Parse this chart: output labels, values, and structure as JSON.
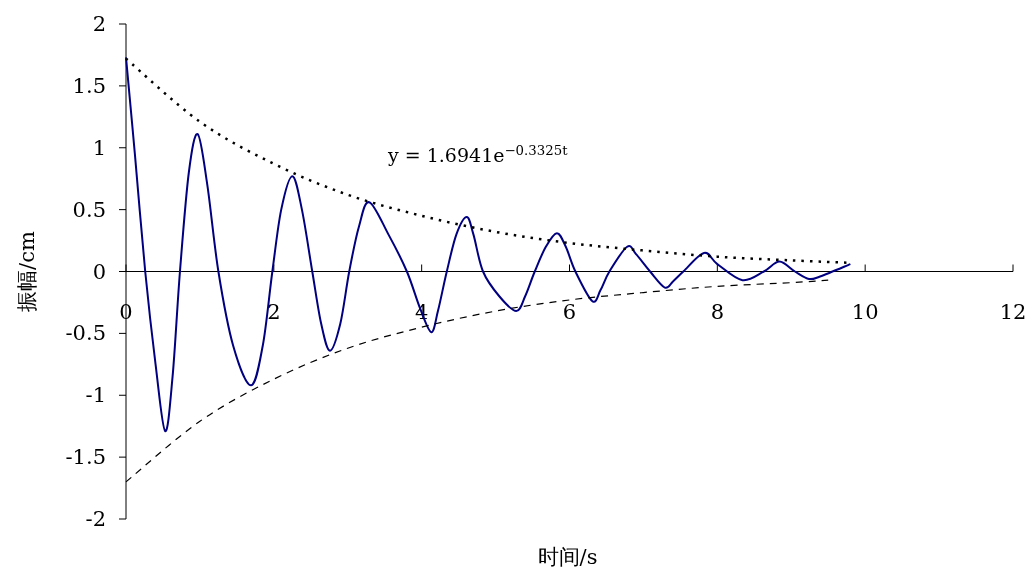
{
  "chart_data": {
    "type": "line",
    "xlabel": "时间/s",
    "ylabel": "振幅/cm",
    "annotations": [
      "y = 1.6941e$^{−0.3325t}$"
    ],
    "xlim": [
      0,
      12
    ],
    "xticks": [
      0,
      2,
      4,
      6,
      8,
      10,
      12
    ],
    "ylim": [
      -2,
      2
    ],
    "yticks": [
      -2,
      -1.5,
      -1,
      -0.5,
      0,
      0.5,
      1,
      1.5,
      2
    ],
    "grid": false,
    "marker": "none",
    "series": [
      {
        "color": "#000080",
        "line_style": "solid",
        "x": [
          0,
          0.12,
          0.26,
          0.4,
          0.53,
          0.63,
          0.73,
          0.85,
          0.97,
          1.1,
          1.25,
          1.45,
          1.69,
          1.85,
          1.98,
          2.1,
          2.25,
          2.38,
          2.52,
          2.64,
          2.76,
          2.9,
          3.02,
          3.15,
          3.29,
          3.55,
          3.8,
          3.98,
          4.13,
          4.22,
          4.34,
          4.47,
          4.61,
          4.7,
          4.83,
          5.05,
          5.28,
          5.4,
          5.53,
          5.68,
          5.83,
          5.95,
          6.08,
          6.31,
          6.42,
          6.54,
          6.78,
          6.9,
          7.09,
          7.29,
          7.4,
          7.54,
          7.82,
          8.0,
          8.34,
          8.63,
          8.84,
          9.05,
          9.24,
          9.39,
          9.8
        ],
        "values": [
          1.73,
          0.95,
          0,
          -0.75,
          -1.29,
          -0.85,
          0,
          0.8,
          1.11,
          0.7,
          0,
          -0.6,
          -0.92,
          -0.6,
          0,
          0.5,
          0.77,
          0.5,
          0,
          -0.42,
          -0.64,
          -0.42,
          0,
          0.36,
          0.56,
          0.3,
          0,
          -0.3,
          -0.49,
          -0.32,
          0,
          0.3,
          0.44,
          0.3,
          0,
          -0.2,
          -0.32,
          -0.2,
          0,
          0.2,
          0.31,
          0.2,
          0,
          -0.24,
          -0.15,
          0,
          0.2,
          0.14,
          0,
          -0.13,
          -0.08,
          0,
          0.15,
          0.06,
          -0.07,
          0,
          0.08,
          0,
          -0.06,
          -0.04,
          0.06
        ]
      },
      {
        "color": "#000000",
        "line_style": "dotted",
        "x": [
          0,
          1,
          2,
          3,
          4,
          5,
          6,
          7,
          8,
          9,
          9.8
        ],
        "values": [
          1.72,
          1.21,
          0.87,
          0.62,
          0.45,
          0.32,
          0.23,
          0.17,
          0.12,
          0.09,
          0.07
        ]
      },
      {
        "color": "#000000",
        "line_style": "dashed",
        "x": [
          0,
          1,
          2,
          3,
          4,
          5,
          6,
          7,
          8,
          9,
          9.5
        ],
        "values": [
          -1.7,
          -1.21,
          -0.87,
          -0.62,
          -0.45,
          -0.32,
          -0.23,
          -0.17,
          -0.12,
          -0.09,
          -0.07
        ]
      }
    ]
  }
}
